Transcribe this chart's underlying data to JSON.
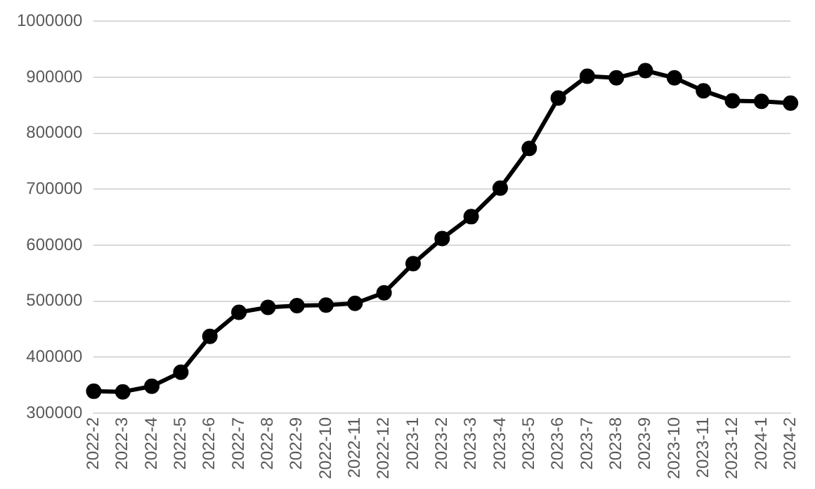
{
  "chart_data": {
    "type": "line",
    "categories": [
      "2022-2",
      "2022-3",
      "2022-4",
      "2022-5",
      "2022-6",
      "2022-7",
      "2022-8",
      "2022-9",
      "2022-10",
      "2022-11",
      "2022-12",
      "2023-1",
      "2023-2",
      "2023-3",
      "2023-4",
      "2023-5",
      "2023-6",
      "2023-7",
      "2023-8",
      "2023-9",
      "2023-10",
      "2023-11",
      "2023-12",
      "2024-1",
      "2024-2"
    ],
    "series": [
      {
        "color": "#000000",
        "values": [
          339000,
          338000,
          348000,
          373000,
          437000,
          480000,
          489000,
          492000,
          493000,
          496000,
          515000,
          567000,
          612000,
          651000,
          702000,
          773000,
          863000,
          902000,
          899000,
          912000,
          899000,
          876000,
          858000,
          857000,
          854000
        ]
      }
    ],
    "ylim": [
      300000,
      1000000
    ],
    "yticks": [
      300000,
      400000,
      500000,
      600000,
      700000,
      800000,
      900000,
      1000000
    ],
    "grid": "y",
    "legend": false,
    "marker": "circle",
    "line_style": "solid"
  }
}
